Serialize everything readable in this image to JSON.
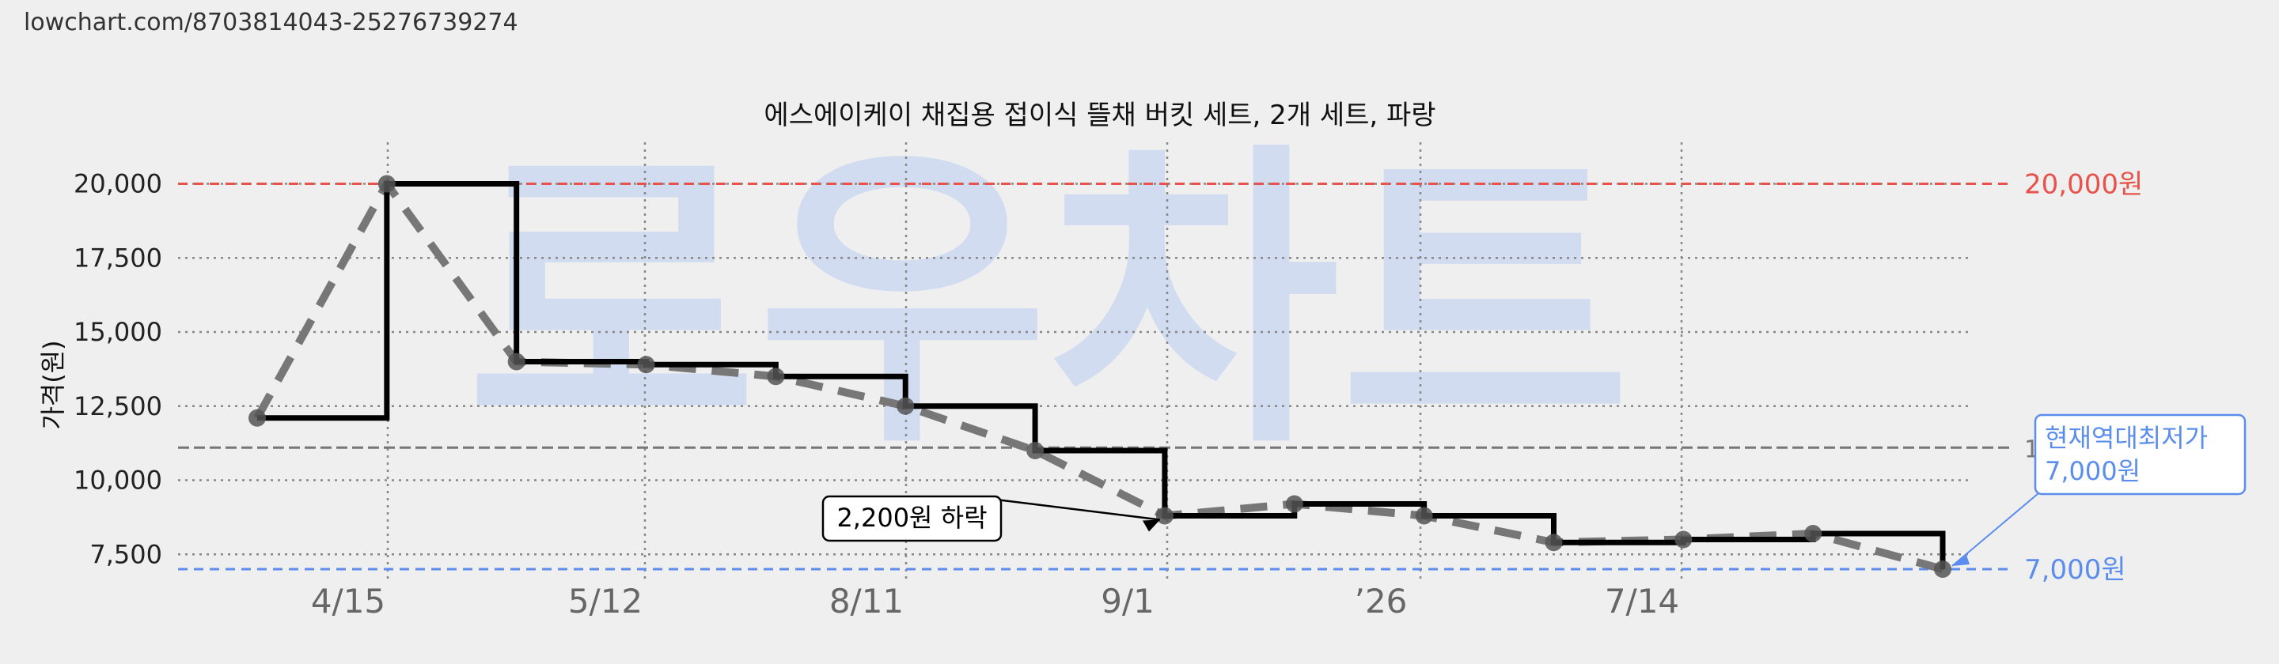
{
  "url_text": "lowchart.com/8703814043-25276739274",
  "watermark": "로우차트",
  "colors": {
    "background": "#efefef",
    "max_line": "#e8524a",
    "min_line": "#5b8def",
    "avg_line": "#777777",
    "step_line": "#000000",
    "trend_line": "#777777",
    "watermark": "#ccd9f2"
  },
  "chart_data": {
    "type": "line",
    "title": "에스에이케이 채집용 접이식 뜰채 버킷 세트, 2개 세트, 파랑",
    "ylabel": "가격(원)",
    "xlabel": "",
    "ylim": [
      6600,
      21400
    ],
    "yticks": [
      {
        "value": 20000,
        "label": "20,000"
      },
      {
        "value": 17500,
        "label": "17,500"
      },
      {
        "value": 15000,
        "label": "15,000"
      },
      {
        "value": 12500,
        "label": "12,500"
      },
      {
        "value": 10000,
        "label": "10,000"
      },
      {
        "value": 7500,
        "label": "7,500"
      }
    ],
    "xticks": [
      "4/15",
      "5/12",
      "8/11",
      "9/1",
      "’26",
      "7/14"
    ],
    "grid": true,
    "series": [
      {
        "values": [
          12100,
          20000,
          14000,
          13900,
          13500,
          12500,
          11000,
          8800,
          9200,
          8800,
          7900,
          8000,
          8200,
          7000
        ]
      }
    ],
    "reference_lines": [
      {
        "kind": "max",
        "value": 20000,
        "label": "20,000원"
      },
      {
        "kind": "average",
        "value": 11100,
        "label": "1"
      },
      {
        "kind": "min",
        "value": 7000,
        "label": "7,000원"
      }
    ],
    "annotations": [
      {
        "text": "2,200원 하락",
        "at_point": 7
      },
      {
        "lines": [
          "현재역대최저가",
          "7,000원"
        ],
        "at_point": 13
      }
    ]
  }
}
